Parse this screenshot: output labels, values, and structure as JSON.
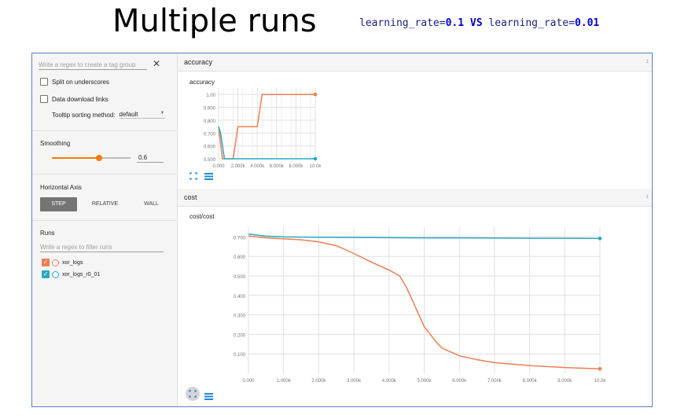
{
  "slide": {
    "title": "Multiple runs",
    "compare": {
      "left_key": "learning_rate=",
      "left_value": "0.1",
      "vs": "VS",
      "right_key": "learning_rate=",
      "right_value": "0.01"
    }
  },
  "sidebar": {
    "tag_regex_placeholder": "Write a regex to create a tag group",
    "close_icon": "close-icon",
    "split_label": "Split on underscores",
    "download_label": "Data download links",
    "tooltip_label": "Tooltip sorting method:",
    "tooltip_value": "default",
    "smoothing_label": "Smoothing",
    "smoothing_value": "0.6",
    "smoothing_level": 0.6,
    "horizontal_axis_label": "Horizontal Axis",
    "axis_options": [
      "STEP",
      "RELATIVE",
      "WALL"
    ],
    "axis_selected": "STEP",
    "runs_label": "Runs",
    "runs_filter_placeholder": "Write a regex to filter runs",
    "runs": [
      {
        "name": "xor_logs",
        "color": "#ee7e53",
        "checked": true
      },
      {
        "name": "xor_logs_r0_01",
        "color": "#29a9c2",
        "checked": true
      }
    ]
  },
  "accuracy_card": {
    "header": "accuracy",
    "count": "1",
    "chart_title": "accuracy"
  },
  "cost_card": {
    "header": "cost",
    "count": "1",
    "chart_title": "cost/cost"
  },
  "icons": {
    "expand": "fit-domain-icon",
    "menu": "menu-icon"
  },
  "chart_data": [
    {
      "type": "line",
      "title": "accuracy",
      "xlim": [
        0,
        10000
      ],
      "ylim": [
        0.5,
        1.05
      ],
      "x_ticks": [
        "0.000",
        "2.000k",
        "4.000k",
        "6.000k",
        "8.000k",
        "10.0k"
      ],
      "y_ticks": [
        "0.500",
        "0.600",
        "0.700",
        "0.800",
        "0.900",
        "1.00"
      ],
      "grid": true,
      "series": [
        {
          "name": "xor_logs",
          "color": "#ee7e53",
          "x": [
            0,
            200,
            400,
            600,
            800,
            1000,
            1500,
            2000,
            2500,
            3000,
            3500,
            4000,
            4500,
            5000,
            5500,
            6000,
            7000,
            8000,
            9000,
            10000
          ],
          "y": [
            0.75,
            0.62,
            0.5,
            0.5,
            0.5,
            0.5,
            0.5,
            0.75,
            0.75,
            0.75,
            0.75,
            0.75,
            1.0,
            1.0,
            1.0,
            1.0,
            1.0,
            1.0,
            1.0,
            1.0
          ]
        },
        {
          "name": "xor_logs_r0_01",
          "color": "#29a9c2",
          "x": [
            0,
            200,
            400,
            600,
            800,
            1000,
            2000,
            4000,
            6000,
            8000,
            10000
          ],
          "y": [
            0.75,
            0.7,
            0.6,
            0.5,
            0.5,
            0.5,
            0.5,
            0.5,
            0.5,
            0.5,
            0.5
          ]
        }
      ]
    },
    {
      "type": "line",
      "title": "cost/cost",
      "xlim": [
        0,
        10000
      ],
      "ylim": [
        0,
        0.75
      ],
      "x_ticks": [
        "0.000",
        "1.000k",
        "2.000k",
        "3.000k",
        "4.000k",
        "5.000k",
        "6.000k",
        "7.000k",
        "8.000k",
        "9.000k",
        "10.0k"
      ],
      "y_ticks": [
        "0.100",
        "0.200",
        "0.300",
        "0.400",
        "0.500",
        "0.600",
        "0.700"
      ],
      "grid": true,
      "series": [
        {
          "name": "xor_logs",
          "color": "#ee7e53",
          "x": [
            0,
            500,
            1000,
            1500,
            2000,
            2500,
            3000,
            3500,
            4000,
            4300,
            4500,
            4700,
            5000,
            5300,
            5500,
            6000,
            6500,
            7000,
            8000,
            9000,
            10000
          ],
          "y": [
            0.705,
            0.695,
            0.69,
            0.685,
            0.675,
            0.655,
            0.615,
            0.57,
            0.53,
            0.5,
            0.44,
            0.36,
            0.24,
            0.17,
            0.13,
            0.09,
            0.07,
            0.055,
            0.04,
            0.03,
            0.023
          ]
        },
        {
          "name": "xor_logs_r0_01",
          "color": "#29a9c2",
          "x": [
            0,
            500,
            1000,
            2000,
            3000,
            4000,
            5000,
            6000,
            7000,
            8000,
            9000,
            10000
          ],
          "y": [
            0.714,
            0.704,
            0.7,
            0.698,
            0.697,
            0.696,
            0.695,
            0.695,
            0.694,
            0.693,
            0.693,
            0.692
          ]
        }
      ]
    }
  ]
}
